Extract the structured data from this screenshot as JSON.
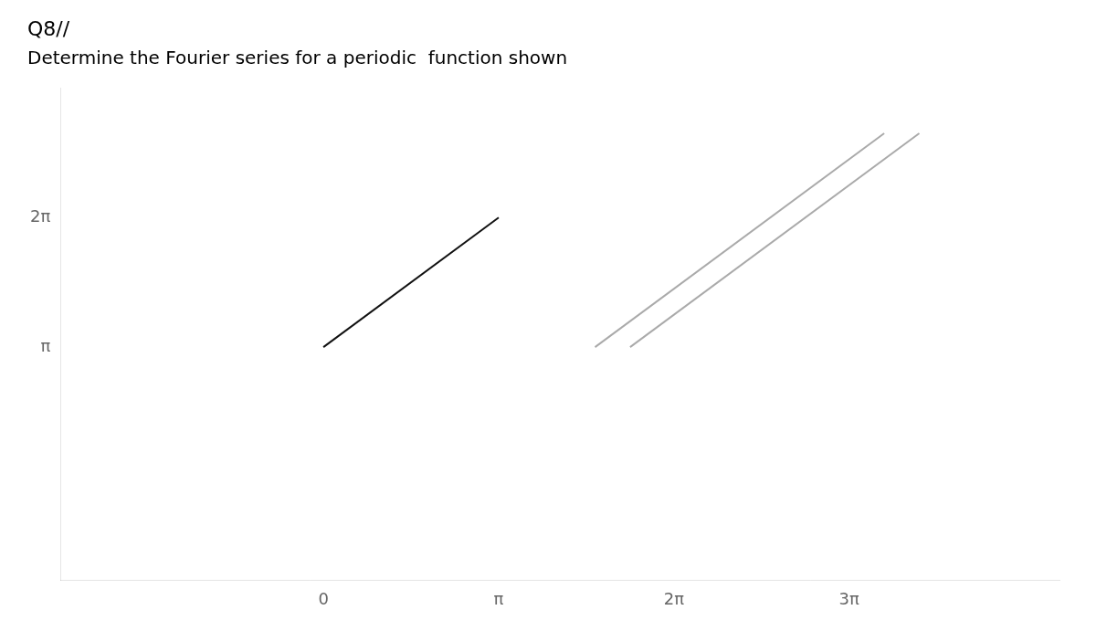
{
  "chart_data": {
    "type": "line",
    "title": "Q8//",
    "subtitle": "Determine the Fourier series for a periodic  function shown",
    "series": [
      {
        "color": "#111111",
        "x": [
          0,
          1
        ],
        "values": [
          1,
          2
        ]
      },
      {
        "color": "#aaaaaa",
        "x": [
          1.55,
          3.2
        ],
        "values": [
          1.0,
          2.65
        ]
      },
      {
        "color": "#aaaaaa",
        "x": [
          1.75,
          3.4
        ],
        "values": [
          1.0,
          2.65
        ]
      }
    ],
    "xlim": [
      -1.5,
      4.2
    ],
    "ylim": [
      -0.8,
      3.0
    ],
    "xticks": [
      0,
      {
        "value": 1,
        "label": "π"
      },
      {
        "value": 2,
        "label": "2π"
      },
      {
        "value": 3,
        "label": "3π"
      }
    ],
    "yticks": [
      {
        "value": 1,
        "label": "π"
      },
      {
        "value": 2,
        "label": "2π"
      }
    ],
    "grid": false
  }
}
